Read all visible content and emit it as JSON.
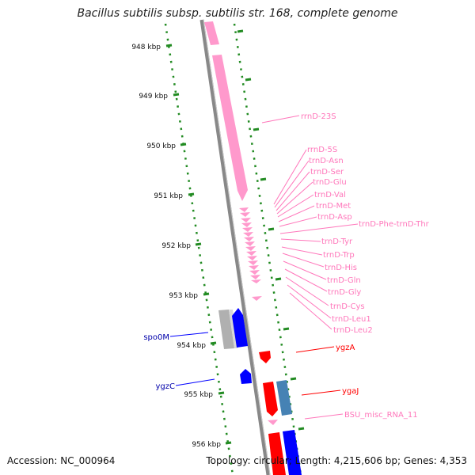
{
  "title": "Bacillus subtilis subsp. subtilis str. 168, complete genome",
  "footer": {
    "accession": "Accession: NC_000964",
    "topology": "Topology: circular; Length: 4,215,606 bp; Genes: 4,353"
  },
  "colors": {
    "rrna": "#ff99cc",
    "trna": "#ff99cc",
    "forward_gene": "#0000ff",
    "reverse_gene": "#ff0000",
    "misc_feature": "#b4b4b4",
    "other_cds": "#4682b4",
    "backbone": "#888888",
    "scale_ticks": "#228b22"
  },
  "ruler": [
    "948 kbp",
    "949 kbp",
    "950 kbp",
    "951 kbp",
    "952 kbp",
    "953 kbp",
    "954 kbp",
    "955 kbp",
    "956 kbp"
  ],
  "right_labels": [
    "rrnD-23S",
    "rrnD-5S",
    "trnD-Asn",
    "trnD-Ser",
    "trnD-Glu",
    "trnD-Val",
    "trnD-Met",
    "trnD-Asp",
    "trnD-Phe-trnD-Thr",
    "trnD-Tyr",
    "trnD-Trp",
    "trnD-His",
    "trnD-Gln",
    "trnD-Gly",
    "trnD-Cys",
    "trnD-Leu1",
    "trnD-Leu2",
    "ygzA",
    "ygaJ",
    "BSU_misc_RNA_11"
  ],
  "left_labels": [
    "spo0M",
    "ygzC"
  ]
}
